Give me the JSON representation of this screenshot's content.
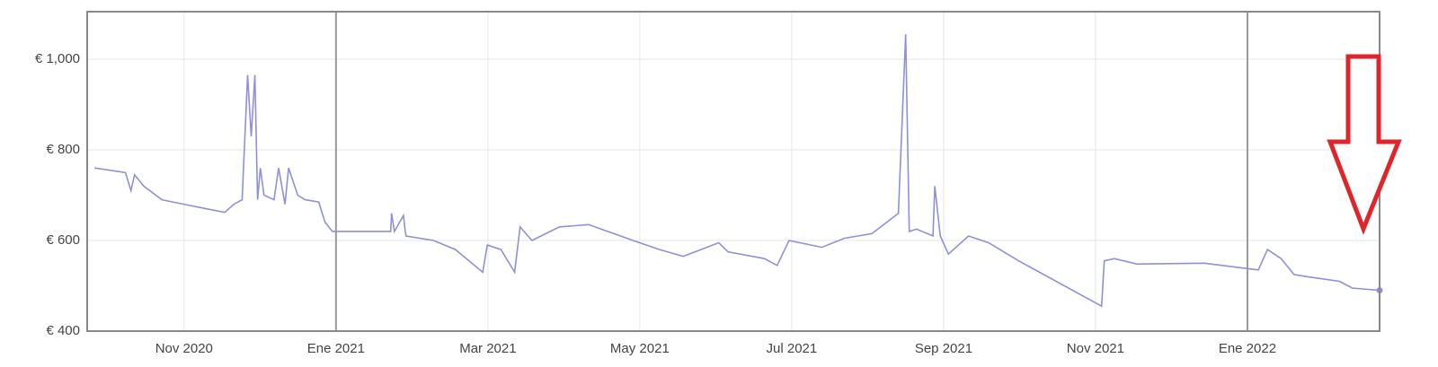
{
  "chart_data": {
    "type": "line",
    "x": [
      2020.735,
      2020.769,
      2020.775,
      2020.779,
      2020.789,
      2020.809,
      2020.833,
      2020.858,
      2020.878,
      2020.888,
      2020.897,
      2020.903,
      2020.907,
      2020.911,
      2020.914,
      2020.917,
      2020.921,
      2020.932,
      2020.937,
      2020.944,
      2020.948,
      2020.958,
      2020.966,
      2020.981,
      2020.988,
      2020.996,
      2021.06,
      2021.061,
      2021.064,
      2021.074,
      2021.076,
      2021.077,
      2021.107,
      2021.131,
      2021.161,
      2021.166,
      2021.181,
      2021.196,
      2021.202,
      2021.215,
      2021.245,
      2021.277,
      2021.326,
      2021.355,
      2021.381,
      2021.42,
      2021.43,
      2021.47,
      2021.484,
      2021.497,
      2021.533,
      2021.558,
      2021.588,
      2021.617,
      2021.625,
      2021.629,
      2021.637,
      2021.655,
      2021.657,
      2021.663,
      2021.672,
      2021.694,
      2021.716,
      2021.749,
      2021.84,
      2021.843,
      2021.854,
      2021.879,
      2021.953,
      2021.992,
      2022.012,
      2022.022,
      2022.037,
      2022.051,
      2022.066,
      2022.101,
      2022.115,
      2022.145
    ],
    "series": [
      {
        "color": "#8f8fdb",
        "values": [
          760,
          750,
          710,
          745,
          720,
          690,
          680,
          670,
          662,
          680,
          690,
          965,
          830,
          965,
          690,
          760,
          700,
          690,
          760,
          680,
          760,
          700,
          690,
          685,
          640,
          620,
          620,
          660,
          620,
          655,
          620,
          610,
          600,
          580,
          530,
          590,
          580,
          530,
          630,
          600,
          630,
          635,
          600,
          580,
          565,
          595,
          575,
          560,
          545,
          600,
          585,
          605,
          615,
          660,
          1055,
          620,
          625,
          610,
          720,
          610,
          570,
          610,
          595,
          555,
          455,
          555,
          560,
          548,
          550,
          540,
          535,
          580,
          560,
          525,
          520,
          510,
          495,
          490
        ]
      }
    ],
    "xlim": [
      2020.727,
      2022.145
    ],
    "xticks": [
      {
        "value": 2020.8333,
        "label": "Nov 2020"
      },
      {
        "value": 2021,
        "label": "Ene 2021"
      },
      {
        "value": 2021.1667,
        "label": "Mar 2021"
      },
      {
        "value": 2021.3333,
        "label": "May 2021"
      },
      {
        "value": 2021.5,
        "label": "Jul 2021"
      },
      {
        "value": 2021.6667,
        "label": "Sep 2021"
      },
      {
        "value": 2021.8333,
        "label": "Nov 2021"
      },
      {
        "value": 2022,
        "label": "Ene 2022"
      }
    ],
    "ylim": [
      400,
      1105
    ],
    "yticks": [
      {
        "value": 400,
        "label": "€ 400"
      },
      {
        "value": 600,
        "label": "€ 600"
      },
      {
        "value": 800,
        "label": "€ 800"
      },
      {
        "value": 1000,
        "label": "€ 1,000"
      }
    ],
    "grid": true
  }
}
